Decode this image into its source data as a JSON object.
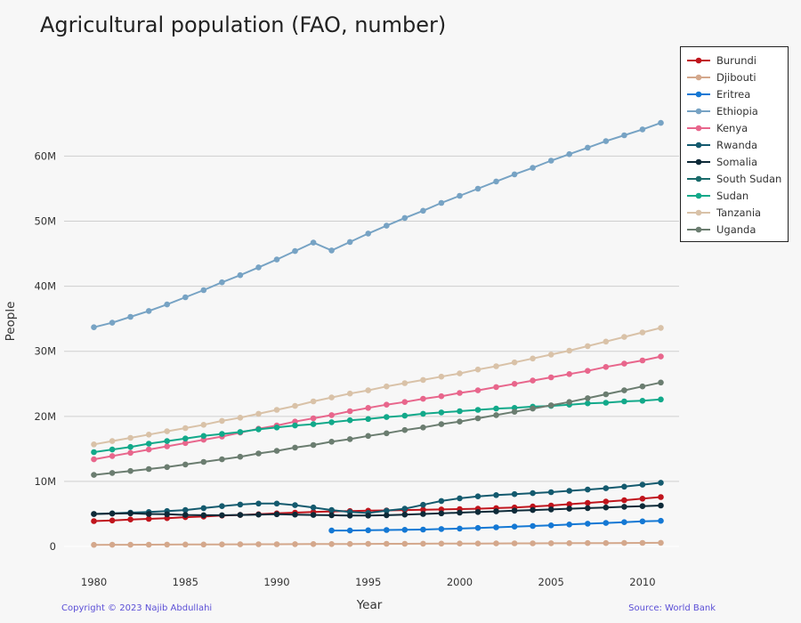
{
  "chart_data": {
    "type": "line",
    "title": "Agricultural population (FAO, number)",
    "xlabel": "Year",
    "ylabel": "People",
    "xlim": [
      1979,
      2012
    ],
    "ylim": [
      -1500000,
      71000000
    ],
    "x_ticks": [
      1980,
      1985,
      1990,
      1995,
      2000,
      2005,
      2010
    ],
    "y_ticks": [
      {
        "value": 0,
        "label": "0"
      },
      {
        "value": 10000000,
        "label": "10M"
      },
      {
        "value": 20000000,
        "label": "20M"
      },
      {
        "value": 30000000,
        "label": "30M"
      },
      {
        "value": 40000000,
        "label": "40M"
      },
      {
        "value": 50000000,
        "label": "50M"
      },
      {
        "value": 60000000,
        "label": "60M"
      }
    ],
    "grid": "horizontal",
    "legend_position": "top-right",
    "series": [
      {
        "name": "Burundi",
        "color": "#c0141c",
        "x": [
          1980,
          1981,
          1982,
          1983,
          1984,
          1985,
          1986,
          1987,
          1988,
          1989,
          1990,
          1991,
          1992,
          1993,
          1994,
          1995,
          1996,
          1997,
          1998,
          1999,
          2000,
          2001,
          2002,
          2003,
          2004,
          2005,
          2006,
          2007,
          2008,
          2009,
          2010,
          2011
        ],
        "y": [
          3900000,
          4000000,
          4150000,
          4250000,
          4350000,
          4500000,
          4600000,
          4750000,
          4850000,
          4950000,
          5100000,
          5200000,
          5300000,
          5400000,
          5450000,
          5500000,
          5550000,
          5600000,
          5650000,
          5700000,
          5750000,
          5800000,
          5900000,
          6000000,
          6150000,
          6300000,
          6500000,
          6700000,
          6900000,
          7100000,
          7350000,
          7600000
        ]
      },
      {
        "name": "Djibouti",
        "color": "#d4a88c",
        "x": [
          1980,
          1981,
          1982,
          1983,
          1984,
          1985,
          1986,
          1987,
          1988,
          1989,
          1990,
          1991,
          1992,
          1993,
          1994,
          1995,
          1996,
          1997,
          1998,
          1999,
          2000,
          2001,
          2002,
          2003,
          2004,
          2005,
          2006,
          2007,
          2008,
          2009,
          2010,
          2011
        ],
        "y": [
          250000,
          260000,
          270000,
          280000,
          290000,
          300000,
          310000,
          320000,
          330000,
          340000,
          350000,
          360000,
          370000,
          380000,
          390000,
          400000,
          410000,
          420000,
          430000,
          440000,
          450000,
          460000,
          470000,
          480000,
          490000,
          500000,
          510000,
          520000,
          530000,
          540000,
          550000,
          560000
        ]
      },
      {
        "name": "Eritrea",
        "color": "#1478d4",
        "x": [
          1993,
          1994,
          1995,
          1996,
          1997,
          1998,
          1999,
          2000,
          2001,
          2002,
          2003,
          2004,
          2005,
          2006,
          2007,
          2008,
          2009,
          2010,
          2011
        ],
        "y": [
          2450000,
          2450000,
          2500000,
          2530000,
          2560000,
          2600000,
          2680000,
          2760000,
          2850000,
          2950000,
          3050000,
          3150000,
          3250000,
          3380000,
          3500000,
          3620000,
          3740000,
          3860000,
          3950000
        ]
      },
      {
        "name": "Ethiopia",
        "color": "#77a3c4",
        "x": [
          1980,
          1981,
          1982,
          1983,
          1984,
          1985,
          1986,
          1987,
          1988,
          1989,
          1990,
          1991,
          1992,
          1993,
          1994,
          1995,
          1996,
          1997,
          1998,
          1999,
          2000,
          2001,
          2002,
          2003,
          2004,
          2005,
          2006,
          2007,
          2008,
          2009,
          2010,
          2011
        ],
        "y": [
          33700000,
          34400000,
          35300000,
          36200000,
          37200000,
          38300000,
          39400000,
          40600000,
          41700000,
          42900000,
          44100000,
          45400000,
          46700000,
          45500000,
          46800000,
          48100000,
          49300000,
          50500000,
          51600000,
          52800000,
          53900000,
          55000000,
          56100000,
          57200000,
          58200000,
          59300000,
          60300000,
          61300000,
          62300000,
          63200000,
          64100000,
          65100000
        ]
      },
      {
        "name": "Kenya",
        "color": "#e8668c",
        "x": [
          1980,
          1981,
          1982,
          1983,
          1984,
          1985,
          1986,
          1987,
          1988,
          1989,
          1990,
          1991,
          1992,
          1993,
          1994,
          1995,
          1996,
          1997,
          1998,
          1999,
          2000,
          2001,
          2002,
          2003,
          2004,
          2005,
          2006,
          2007,
          2008,
          2009,
          2010,
          2011
        ],
        "y": [
          13400000,
          13900000,
          14400000,
          14900000,
          15400000,
          15900000,
          16400000,
          16900000,
          17500000,
          18100000,
          18600000,
          19200000,
          19700000,
          20200000,
          20800000,
          21300000,
          21800000,
          22200000,
          22700000,
          23100000,
          23600000,
          24000000,
          24500000,
          25000000,
          25500000,
          26000000,
          26500000,
          27000000,
          27600000,
          28100000,
          28600000,
          29200000
        ]
      },
      {
        "name": "Rwanda",
        "color": "#145a6e",
        "x": [
          1980,
          1981,
          1982,
          1983,
          1984,
          1985,
          1986,
          1987,
          1988,
          1989,
          1990,
          1991,
          1992,
          1993,
          1994,
          1995,
          1996,
          1997,
          1998,
          1999,
          2000,
          2001,
          2002,
          2003,
          2004,
          2005,
          2006,
          2007,
          2008,
          2009,
          2010,
          2011
        ],
        "y": [
          5000000,
          5100000,
          5200000,
          5300000,
          5450000,
          5600000,
          5900000,
          6200000,
          6450000,
          6600000,
          6600000,
          6350000,
          6000000,
          5600000,
          5300000,
          5150000,
          5500000,
          5800000,
          6400000,
          7000000,
          7400000,
          7700000,
          7900000,
          8050000,
          8200000,
          8350000,
          8550000,
          8750000,
          8950000,
          9200000,
          9500000,
          9800000
        ]
      },
      {
        "name": "Somalia",
        "color": "#0e2a38",
        "x": [
          1980,
          1981,
          1982,
          1983,
          1984,
          1985,
          1986,
          1987,
          1988,
          1989,
          1990,
          1991,
          1992,
          1993,
          1994,
          1995,
          1996,
          1997,
          1998,
          1999,
          2000,
          2001,
          2002,
          2003,
          2004,
          2005,
          2006,
          2007,
          2008,
          2009,
          2010,
          2011
        ],
        "y": [
          5000000,
          5050000,
          5100000,
          5000000,
          4950000,
          4850000,
          4800000,
          4800000,
          4850000,
          4900000,
          4950000,
          4900000,
          4850000,
          4800000,
          4750000,
          4750000,
          4800000,
          4900000,
          5000000,
          5100000,
          5200000,
          5300000,
          5400000,
          5500000,
          5600000,
          5700000,
          5800000,
          5900000,
          6000000,
          6100000,
          6200000,
          6300000
        ]
      },
      {
        "name": "South Sudan",
        "color": "#1a6b6b",
        "x": [],
        "y": []
      },
      {
        "name": "Sudan",
        "color": "#12a98a",
        "x": [
          1980,
          1981,
          1982,
          1983,
          1984,
          1985,
          1986,
          1987,
          1988,
          1989,
          1990,
          1991,
          1992,
          1993,
          1994,
          1995,
          1996,
          1997,
          1998,
          1999,
          2000,
          2001,
          2002,
          2003,
          2004,
          2005,
          2006,
          2007,
          2008,
          2009,
          2010,
          2011
        ],
        "y": [
          14500000,
          14900000,
          15300000,
          15800000,
          16200000,
          16600000,
          17000000,
          17300000,
          17600000,
          18000000,
          18300000,
          18600000,
          18800000,
          19100000,
          19400000,
          19600000,
          19900000,
          20100000,
          20400000,
          20600000,
          20800000,
          21000000,
          21200000,
          21300000,
          21500000,
          21600000,
          21800000,
          22000000,
          22100000,
          22300000,
          22400000,
          22600000
        ]
      },
      {
        "name": "Tanzania",
        "color": "#d9c2a8",
        "x": [
          1980,
          1981,
          1982,
          1983,
          1984,
          1985,
          1986,
          1987,
          1988,
          1989,
          1990,
          1991,
          1992,
          1993,
          1994,
          1995,
          1996,
          1997,
          1998,
          1999,
          2000,
          2001,
          2002,
          2003,
          2004,
          2005,
          2006,
          2007,
          2008,
          2009,
          2010,
          2011
        ],
        "y": [
          15700000,
          16200000,
          16700000,
          17200000,
          17700000,
          18200000,
          18700000,
          19300000,
          19800000,
          20400000,
          21000000,
          21600000,
          22300000,
          22900000,
          23500000,
          24000000,
          24600000,
          25100000,
          25600000,
          26100000,
          26600000,
          27200000,
          27700000,
          28300000,
          28900000,
          29500000,
          30100000,
          30800000,
          31500000,
          32200000,
          32900000,
          33600000
        ]
      },
      {
        "name": "Uganda",
        "color": "#6b7d70",
        "x": [
          1980,
          1981,
          1982,
          1983,
          1984,
          1985,
          1986,
          1987,
          1988,
          1989,
          1990,
          1991,
          1992,
          1993,
          1994,
          1995,
          1996,
          1997,
          1998,
          1999,
          2000,
          2001,
          2002,
          2003,
          2004,
          2005,
          2006,
          2007,
          2008,
          2009,
          2010,
          2011
        ],
        "y": [
          11000000,
          11300000,
          11600000,
          11900000,
          12200000,
          12600000,
          13000000,
          13400000,
          13800000,
          14300000,
          14700000,
          15200000,
          15600000,
          16100000,
          16500000,
          17000000,
          17400000,
          17900000,
          18300000,
          18800000,
          19200000,
          19700000,
          20200000,
          20700000,
          21200000,
          21700000,
          22200000,
          22800000,
          23400000,
          24000000,
          24600000,
          25200000
        ]
      }
    ]
  },
  "footer": {
    "copyright": "Copyright © 2023 Najib Abdullahi",
    "source": "Source: World Bank"
  }
}
